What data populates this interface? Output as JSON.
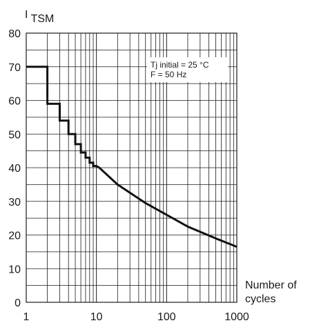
{
  "chart_data": {
    "type": "line",
    "ylabel_main": "I",
    "ylabel_sub": "TSM",
    "xlabel_line1": "Number of",
    "xlabel_line2": "cycles",
    "x_scale": "log",
    "xlim": [
      1,
      1000
    ],
    "ylim": [
      0,
      80
    ],
    "grid": true,
    "x_tick_labels": [
      "1",
      "10",
      "100",
      "1000"
    ],
    "y_tick_labels": [
      "0",
      "10",
      "20",
      "30",
      "40",
      "50",
      "60",
      "70",
      "80"
    ],
    "annotation_line1": "Tj initial = 25 °C",
    "annotation_line2": "F =  50 Hz",
    "series": [
      {
        "step_segment": {
          "x": [
            1,
            2,
            2,
            3,
            3,
            4,
            4,
            5,
            5,
            6,
            6,
            7,
            7,
            8,
            8,
            9,
            9,
            10
          ],
          "y": [
            70,
            70,
            59,
            59,
            54,
            54,
            50,
            50,
            47,
            47,
            44.5,
            44.5,
            43,
            43,
            41.5,
            41.5,
            40.5,
            40.5
          ]
        },
        "curve_segment": {
          "x": [
            10,
            11,
            20,
            50,
            100,
            200,
            500,
            1000
          ],
          "y": [
            40.5,
            40,
            35,
            29.5,
            26,
            22.5,
            19,
            16.5
          ]
        }
      }
    ]
  }
}
